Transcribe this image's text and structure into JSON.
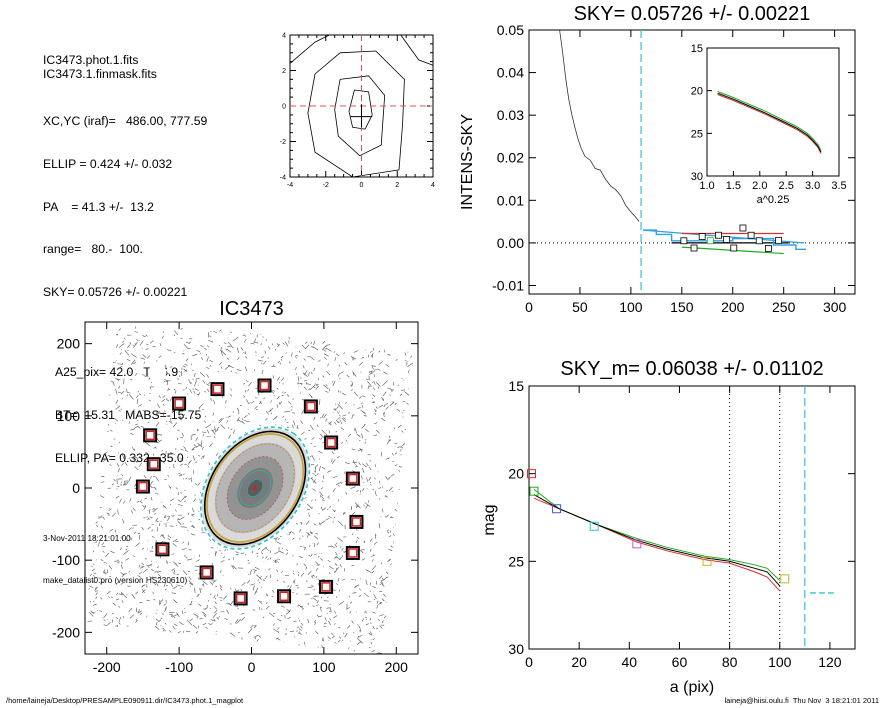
{
  "info": {
    "file1": "IC3473.phot.1.fits",
    "file2": "IC3473.1.finmask.fits",
    "xcyc": "XC,YC (iraf)=   486.00, 777.59",
    "ellip": "ELLIP = 0.424 +/- 0.032",
    "pa": "PA    = 41.3 +/-  13.2",
    "range": "range=   80.-  100.",
    "sky": "SKY= 0.05726 +/- 0.00221",
    "a25": "A25_pix= 42.0   T= 6.9",
    "bt": "BT=  15.31   MABS=-15.75",
    "ellip_pa": "ELLIP, PA= 0.332   35.0",
    "date": "3-Nov-2011 18:21:01.00",
    "program": "make_datalist0.pro (version HS230610)"
  },
  "footer": {
    "path": "/home/laineja/Desktop/PRESAMPLE090911.dir/IC3473.phot.1_magplot",
    "user": "laineja@hiisi.oulu.fi  Thu Nov  3 18:21:01 2011"
  },
  "chart_data": [
    {
      "type": "contour",
      "xlim": [
        -4,
        4
      ],
      "ylim": [
        -4,
        4
      ],
      "xticks": [
        "-4",
        "-2",
        "0",
        "2",
        "4"
      ],
      "yticks": [
        "4",
        "2",
        "0",
        "-2",
        "-4"
      ],
      "crosshair_color": "#e05050"
    },
    {
      "type": "image",
      "title": "IC3473",
      "xlim": [
        -230,
        230
      ],
      "ylim": [
        -230,
        230
      ],
      "xticks": [
        "-200",
        "-100",
        "0",
        "100",
        "200"
      ],
      "yticks": [
        "200",
        "100",
        "0",
        "-100",
        "-200"
      ],
      "mask_boxes": [
        [
          -140,
          73
        ],
        [
          -135,
          33
        ],
        [
          -150,
          2
        ],
        [
          -100,
          117
        ],
        [
          -47,
          137
        ],
        [
          18,
          142
        ],
        [
          82,
          113
        ],
        [
          110,
          63
        ],
        [
          140,
          13
        ],
        [
          145,
          -47
        ],
        [
          140,
          -90
        ],
        [
          103,
          -137
        ],
        [
          45,
          -150
        ],
        [
          -15,
          -153
        ],
        [
          -62,
          -117
        ],
        [
          -123,
          -85
        ]
      ],
      "ellipse": {
        "a": 95,
        "b": 67,
        "pa_deg": 35
      }
    },
    {
      "type": "line",
      "title": "SKY= 0.05726 +/- 0.00221",
      "ylabel": "INTENS-SKY",
      "xlim": [
        0,
        320
      ],
      "ylim": [
        -0.012,
        0.05
      ],
      "xticks": [
        "0",
        "50",
        "100",
        "150",
        "200",
        "250",
        "300"
      ],
      "yticks": [
        "0.05",
        "0.04",
        "0.03",
        "0.02",
        "0.01",
        "0.00",
        "-0.01"
      ],
      "profile": {
        "x": [
          30,
          33,
          36,
          39,
          42,
          45,
          48,
          51,
          55,
          60,
          65,
          70,
          75,
          80,
          85,
          90,
          95,
          100,
          105,
          108
        ],
        "y": [
          0.052,
          0.045,
          0.039,
          0.034,
          0.03,
          0.027,
          0.025,
          0.023,
          0.021,
          0.019,
          0.018,
          0.017,
          0.015,
          0.014,
          0.013,
          0.011,
          0.0095,
          0.008,
          0.0065,
          0.0055
        ]
      },
      "sky_points": [
        [
          152,
          0.0005
        ],
        [
          162,
          -0.0012
        ],
        [
          170,
          0.0015
        ],
        [
          178,
          0.0005
        ],
        [
          186,
          0.0018
        ],
        [
          194,
          0.0008
        ],
        [
          201,
          -0.0012
        ],
        [
          210,
          0.0035
        ],
        [
          218,
          0.0018
        ],
        [
          226,
          0.0005
        ],
        [
          235,
          -0.0013
        ],
        [
          245,
          0.0006
        ]
      ],
      "sky_point_colors": [
        "#000000",
        "#000000",
        "#000000",
        "#22aa22",
        "#000000",
        "#000000",
        "#000000",
        "#000000",
        "#000000",
        "#000000",
        "#000000",
        "#000000"
      ],
      "vline_x": 110,
      "inset": {
        "xlabel": "a^0.25",
        "xlim": [
          1.0,
          3.5
        ],
        "ylim": [
          15,
          30
        ],
        "xticks": [
          "1.0",
          "1.5",
          "2.0",
          "2.5",
          "3.0",
          "3.5"
        ],
        "yticks": [
          "15",
          "20",
          "25",
          "30"
        ],
        "x": [
          1.2,
          1.5,
          1.8,
          2.1,
          2.4,
          2.7,
          2.9,
          3.0,
          3.1,
          3.16
        ],
        "y": [
          20.3,
          21.0,
          21.8,
          22.6,
          23.5,
          24.4,
          25.2,
          25.8,
          26.5,
          27.2
        ]
      }
    },
    {
      "type": "line",
      "title": "SKY_m=  0.06038 +/- 0.01102",
      "xlabel": "a (pix)",
      "ylabel": "mag",
      "xlim": [
        0,
        130
      ],
      "ylim": [
        15,
        30
      ],
      "xticks": [
        "0",
        "20",
        "40",
        "60",
        "80",
        "100",
        "120"
      ],
      "yticks": [
        "15",
        "20",
        "25",
        "30"
      ],
      "series": [
        {
          "color": "#d93030",
          "x": [
            2,
            12,
            27,
            43,
            55,
            70,
            80,
            90,
            95,
            100
          ],
          "y": [
            21.4,
            22.0,
            22.9,
            23.9,
            24.4,
            24.9,
            25.1,
            25.6,
            25.9,
            26.7
          ]
        },
        {
          "color": "#22aa22",
          "x": [
            2,
            12,
            27,
            43,
            55,
            70,
            80,
            90,
            95,
            100
          ],
          "y": [
            20.9,
            22.0,
            22.9,
            23.7,
            24.2,
            24.7,
            24.9,
            25.2,
            25.4,
            26.1
          ]
        },
        {
          "color": "#000000",
          "x": [
            2,
            12,
            27,
            43,
            55,
            70,
            80,
            90,
            95,
            100
          ],
          "y": [
            21.2,
            22.0,
            22.9,
            23.8,
            24.3,
            24.8,
            25.0,
            25.4,
            25.6,
            26.4
          ]
        }
      ],
      "markers": [
        [
          1,
          20.0,
          "#d93030"
        ],
        [
          2,
          21.0,
          "#22aa22"
        ],
        [
          11,
          22.0,
          "#4455dd"
        ],
        [
          26,
          23.0,
          "#30c0d0"
        ],
        [
          43,
          24.0,
          "#cc55cc"
        ],
        [
          71,
          25.0,
          "#c8b430"
        ],
        [
          102,
          26.0,
          "#c8b430"
        ]
      ],
      "vlines": [
        [
          80,
          "#000000"
        ],
        [
          100,
          "#000000"
        ],
        [
          110,
          "#30c0e0"
        ]
      ],
      "hline_dash": [
        112,
        122,
        26.8
      ]
    }
  ]
}
